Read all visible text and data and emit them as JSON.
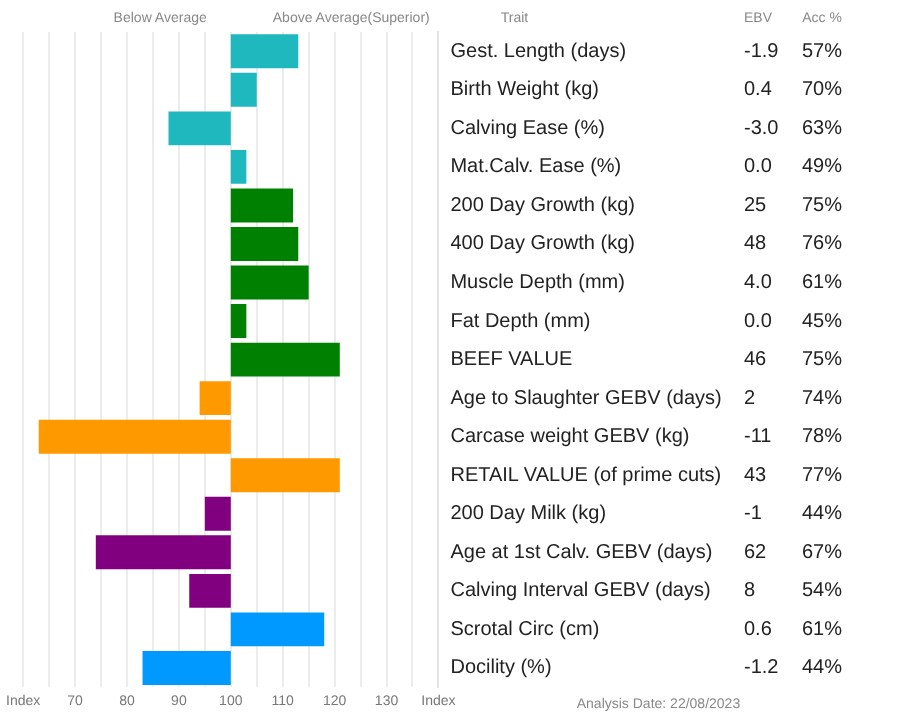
{
  "chart_data": {
    "type": "bar",
    "orientation": "horizontal",
    "categories": [
      "Gest. Length (days)",
      "Birth Weight (kg)",
      "Calving Ease (%)",
      "Mat.Calv. Ease (%)",
      "200 Day Growth (kg)",
      "400 Day Growth (kg)",
      "Muscle Depth (mm)",
      "Fat Depth (mm)",
      "BEEF VALUE",
      "Age to Slaughter GEBV (days)",
      "Carcase weight GEBV (kg)",
      "RETAIL VALUE (of prime cuts)",
      "200 Day Milk (kg)",
      "Age at 1st Calv. GEBV (days)",
      "Calving Interval GEBV (days)",
      "Scrotal Circ (cm)",
      "Docility (%)"
    ],
    "base": [
      100,
      100,
      100,
      100,
      100,
      100,
      100,
      100,
      100,
      100,
      100,
      100,
      100,
      100,
      100,
      100,
      100
    ],
    "values": [
      13,
      5,
      -12,
      3,
      12,
      13,
      15,
      3,
      21,
      -6,
      -37,
      21,
      -5,
      -26,
      -8,
      18,
      -17
    ],
    "colors": [
      "#1fb8bf",
      "#1fb8bf",
      "#1fb8bf",
      "#1fb8bf",
      "#008000",
      "#008000",
      "#008000",
      "#008000",
      "#008000",
      "#ff9900",
      "#ff9900",
      "#ff9900",
      "#800080",
      "#800080",
      "#800080",
      "#0099ff",
      "#0099ff"
    ],
    "xlim": [
      60,
      140
    ],
    "xticks": [
      {
        "value": 60,
        "label": "Index"
      },
      {
        "value": 65,
        "label": null
      },
      70,
      {
        "value": 75,
        "label": null
      },
      80,
      {
        "value": 85,
        "label": null
      },
      90,
      {
        "value": 95,
        "label": null
      },
      100,
      {
        "value": 105,
        "label": null
      },
      110,
      {
        "value": 115,
        "label": null
      },
      120,
      {
        "value": 125,
        "label": null
      },
      130,
      {
        "value": 135,
        "label": null
      },
      {
        "value": 140,
        "label": "Index"
      }
    ],
    "grid": "x",
    "legend": false,
    "annotations": [
      "Below Average",
      "Above Average(Superior)",
      "Trait",
      "EBV",
      "Acc %",
      "Analysis Date: 22/08/2023",
      "-1.9",
      "57%",
      "0.4",
      "70%",
      "-3.0",
      "63%",
      "0.0",
      "49%",
      "25",
      "75%",
      "48",
      "76%",
      "4.0",
      "61%",
      "0.0",
      "45%",
      "46",
      "75%",
      "2",
      "74%",
      "-11",
      "78%",
      "43",
      "77%",
      "-1",
      "44%",
      "62",
      "67%",
      "8",
      "54%",
      "0.6",
      "61%",
      "-1.2",
      "44%"
    ]
  }
}
